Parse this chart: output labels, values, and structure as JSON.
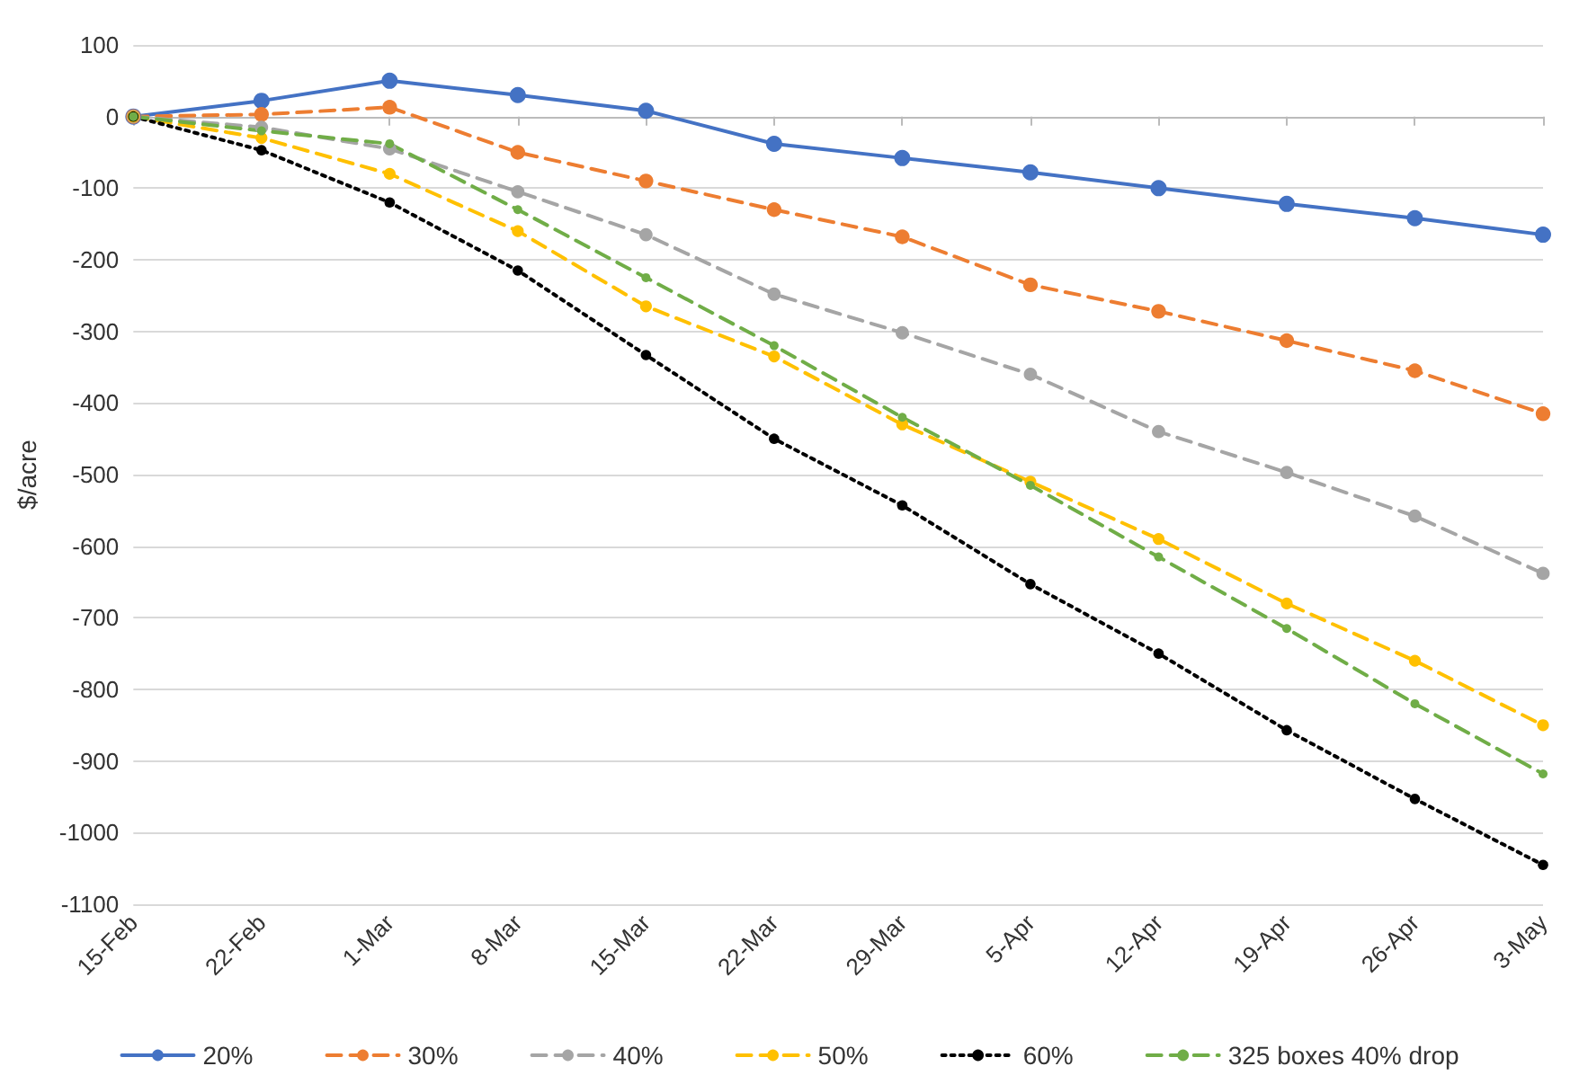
{
  "chart_data": {
    "type": "line",
    "ylabel": "$/acre",
    "categories": [
      "15-Feb",
      "22-Feb",
      "1-Mar",
      "8-Mar",
      "15-Mar",
      "22-Mar",
      "29-Mar",
      "5-Apr",
      "12-Apr",
      "19-Apr",
      "26-Apr",
      "3-May"
    ],
    "series": [
      {
        "name": "20%",
        "color": "#4472c4",
        "line_style": "solid",
        "values": [
          0,
          22,
          50,
          30,
          8,
          -38,
          -58,
          -78,
          -100,
          -122,
          -142,
          -165
        ]
      },
      {
        "name": "30%",
        "color": "#ed7d31",
        "line_style": "dashed",
        "values": [
          0,
          3,
          13,
          -50,
          -90,
          -130,
          -168,
          -235,
          -272,
          -313,
          -355,
          -415
        ]
      },
      {
        "name": "40%",
        "color": "#a5a5a5",
        "line_style": "dashed",
        "values": [
          0,
          -15,
          -45,
          -105,
          -165,
          -248,
          -302,
          -360,
          -440,
          -497,
          -558,
          -638
        ]
      },
      {
        "name": "50%",
        "color": "#ffc000",
        "line_style": "dashed",
        "values": [
          0,
          -30,
          -80,
          -160,
          -265,
          -335,
          -430,
          -510,
          -590,
          -680,
          -760,
          -850
        ]
      },
      {
        "name": "60%",
        "color": "#000000",
        "line_style": "dotted",
        "values": [
          0,
          -47,
          -120,
          -215,
          -333,
          -450,
          -543,
          -653,
          -750,
          -857,
          -953,
          -1045
        ]
      },
      {
        "name": "325 boxes 40% drop",
        "color": "#70ad47",
        "line_style": "dashed",
        "values": [
          0,
          -20,
          -38,
          -130,
          -225,
          -320,
          -420,
          -515,
          -615,
          -715,
          -820,
          -918
        ]
      }
    ],
    "ylim": [
      -1100,
      100
    ],
    "yticks": [
      -1100,
      -1000,
      -900,
      -800,
      -700,
      -600,
      -500,
      -400,
      -300,
      -200,
      -100,
      0,
      100
    ],
    "grid": "y",
    "legend": "bottom",
    "marker": "circle"
  }
}
